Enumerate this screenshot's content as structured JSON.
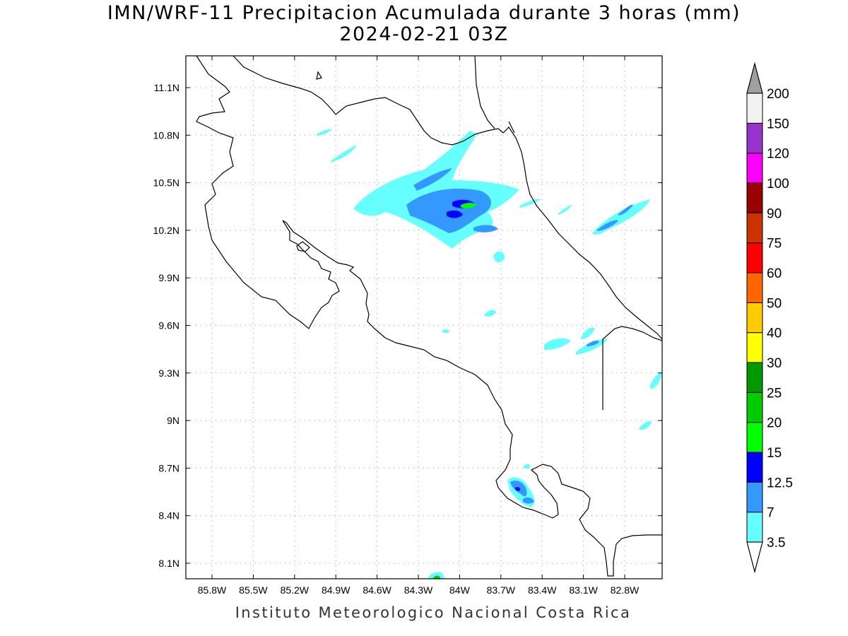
{
  "title": "IMN/WRF-11 Precipitacion Acumulada durante 3 horas (mm)",
  "subtitle": "2024-02-21 03Z",
  "footer": "Instituto Meteorologico Nacional Costa Rica",
  "map": {
    "lon_range": [
      -86.0,
      -82.6
    ],
    "lat_range": [
      8.0,
      11.3
    ],
    "x_ticks": [
      "85.8W",
      "85.5W",
      "85.2W",
      "84.9W",
      "84.6W",
      "84.3W",
      "84W",
      "83.7W",
      "83.4W",
      "83.1W",
      "82.8W"
    ],
    "y_ticks": [
      "11.1N",
      "10.8N",
      "10.5N",
      "10.2N",
      "9.9N",
      "9.6N",
      "9.3N",
      "9N",
      "8.7N",
      "8.4N",
      "8.1N"
    ],
    "grid": true
  },
  "colorbar": {
    "labels": [
      "3.5",
      "7",
      "12.5",
      "15",
      "20",
      "25",
      "30",
      "40",
      "50",
      "60",
      "75",
      "90",
      "100",
      "120",
      "150",
      "200"
    ],
    "colors": [
      "#66ffff",
      "#3399ff",
      "#0000ff",
      "#00ff00",
      "#00cc00",
      "#009900",
      "#ffff00",
      "#ffcc00",
      "#ff6600",
      "#ff0000",
      "#cc3300",
      "#990000",
      "#ff00ff",
      "#9933cc",
      "#f2f2f2"
    ],
    "over_color": "#a0a0a0",
    "under_color": "#ffffff"
  }
}
